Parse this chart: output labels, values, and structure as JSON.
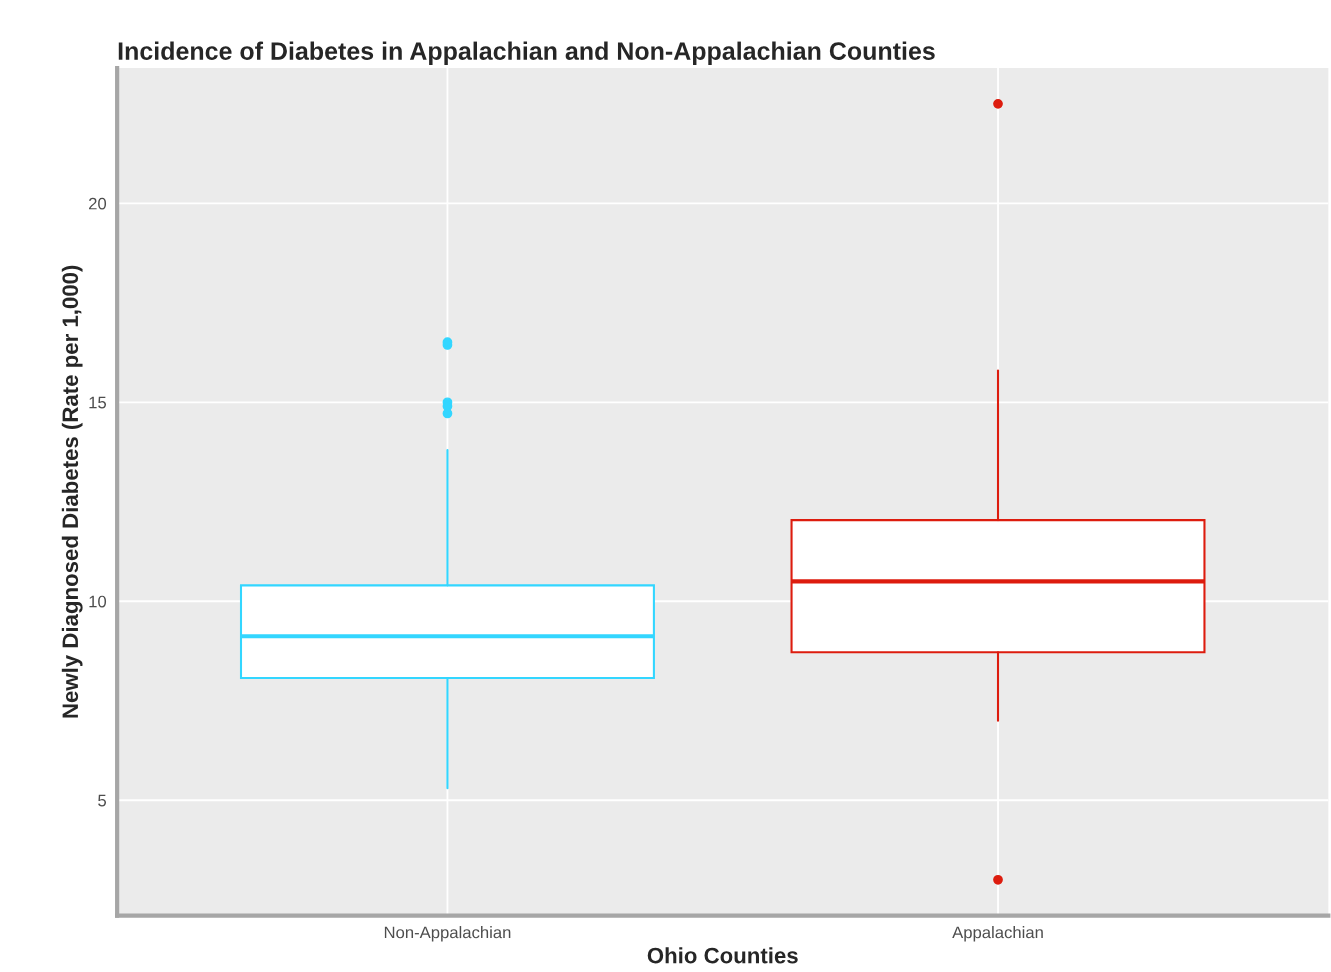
{
  "chart_data": {
    "type": "box",
    "title": "Incidence of Diabetes in Appalachian and Non-Appalachian Counties",
    "xlabel": "Ohio Counties",
    "ylabel": "Newly Diagnosed Diabetes (Rate per 1,000)",
    "categories": [
      "Non-Appalachian",
      "Appalachian"
    ],
    "colors": [
      "#33d6ff",
      "#dd1c0e"
    ],
    "boxes": [
      {
        "low": 5.3,
        "q1": 8.07,
        "median": 9.12,
        "q3": 10.4,
        "high": 13.8,
        "outliers": [
          16.44,
          16.51,
          15.0,
          14.9,
          14.72
        ]
      },
      {
        "low": 7.0,
        "q1": 8.72,
        "median": 10.5,
        "q3": 12.04,
        "high": 15.8,
        "outliers": [
          22.5,
          3.0
        ]
      }
    ],
    "ylim": [
      2.1,
      23.4
    ],
    "yticks": [
      5,
      10,
      15,
      20
    ],
    "grid": true
  }
}
